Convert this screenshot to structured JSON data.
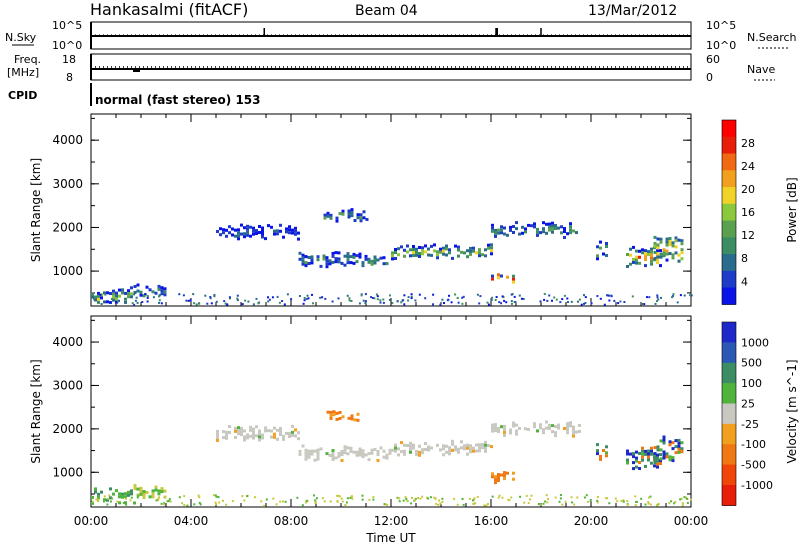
{
  "header": {
    "station": "Hankasalmi (fitACF)",
    "beam": "Beam 04",
    "date": "13/Mar/2012"
  },
  "panels": {
    "nsky": {
      "label": "N.Sky",
      "tick_top": "10^5",
      "tick_bottom": "10^0",
      "right_label": "N.Search",
      "right_tick_top": "10^5",
      "right_tick_bottom": "10^0",
      "spikes_hours": [
        6.93,
        16.2,
        16.25,
        18.0
      ]
    },
    "freq": {
      "label_line1": "Freq.",
      "label_line2": "[MHz]",
      "tick_top": "18",
      "tick_bottom": "8",
      "right_label": "Nave",
      "right_tick_top": "60",
      "right_tick_bottom": "0"
    },
    "cpid": {
      "label": "CPID",
      "value": "normal (fast stereo) 153"
    }
  },
  "chart_data": [
    {
      "type": "heatmap",
      "name": "power",
      "xlabel": "",
      "ylabel": "Slant Range [km]",
      "xlim": [
        0,
        24
      ],
      "ylim": [
        200,
        4600
      ],
      "yticks": [
        "1000",
        "2000",
        "3000",
        "4000"
      ],
      "colorbar": {
        "label": "Power [dB]",
        "ticks": [
          "4",
          "8",
          "12",
          "16",
          "20",
          "24",
          "28"
        ],
        "colors": [
          "#0a14e6",
          "#1e3cc8",
          "#2a6c8c",
          "#3c8c64",
          "#5aa050",
          "#8cc83c",
          "#f0d228",
          "#f0a01e",
          "#f06a14",
          "#e61e0a",
          "#ff0000"
        ]
      },
      "echo_regions": [
        {
          "t0": 0.0,
          "t1": 1.7,
          "r_center": 480,
          "r_width": 220,
          "level": 0.55
        },
        {
          "t0": 1.7,
          "t1": 3.0,
          "r_center": 560,
          "r_width": 200,
          "level": 0.3
        },
        {
          "t0": 5.0,
          "t1": 8.3,
          "r_center": 1900,
          "r_width": 250,
          "level": 0.1
        },
        {
          "t0": 8.3,
          "t1": 12.0,
          "r_center": 1280,
          "r_width": 220,
          "level": 0.32
        },
        {
          "t0": 12.0,
          "t1": 16.0,
          "r_center": 1450,
          "r_width": 240,
          "level": 0.5
        },
        {
          "t0": 16.0,
          "t1": 19.5,
          "r_center": 1950,
          "r_width": 260,
          "level": 0.35
        },
        {
          "t0": 9.3,
          "t1": 11.0,
          "r_center": 2300,
          "r_width": 150,
          "level": 0.3
        },
        {
          "t0": 16.0,
          "t1": 16.9,
          "r_center": 880,
          "r_width": 180,
          "level": 0.95
        },
        {
          "t0": 20.2,
          "t1": 20.6,
          "r_center": 1500,
          "r_width": 280,
          "level": 0.45
        },
        {
          "t0": 21.4,
          "t1": 22.8,
          "r_center": 1350,
          "r_width": 350,
          "level": 0.85
        },
        {
          "t0": 22.5,
          "t1": 23.7,
          "r_center": 1550,
          "r_width": 500,
          "level": 0.7
        }
      ]
    },
    {
      "type": "heatmap",
      "name": "velocity",
      "xlabel": "Time UT",
      "ylabel": "Slant Range [km]",
      "xlim": [
        0,
        24
      ],
      "ylim": [
        200,
        4600
      ],
      "xticks": [
        "00:00",
        "04:00",
        "08:00",
        "12:00",
        "16:00",
        "20:00",
        "00:00"
      ],
      "yticks": [
        "1000",
        "2000",
        "3000",
        "4000"
      ],
      "colorbar": {
        "label": "Velocity [m s^-1]",
        "ticks": [
          "1000",
          "500",
          "100",
          "25",
          "-25",
          "-100",
          "-500",
          "-1000"
        ],
        "colors": [
          "#1e28c8",
          "#2a58b4",
          "#3c8c64",
          "#50b43c",
          "#c8c8c0",
          "#f0a01e",
          "#f07814",
          "#f0460a",
          "#e61e0a"
        ]
      },
      "echo_regions": [
        {
          "t0": 0.0,
          "t1": 1.7,
          "r_center": 480,
          "r_width": 220,
          "kind": "green"
        },
        {
          "t0": 1.7,
          "t1": 3.0,
          "r_center": 560,
          "r_width": 200,
          "kind": "yellow"
        },
        {
          "t0": 5.0,
          "t1": 8.3,
          "r_center": 1900,
          "r_width": 250,
          "kind": "gray"
        },
        {
          "t0": 8.3,
          "t1": 12.0,
          "r_center": 1450,
          "r_width": 260,
          "kind": "gray"
        },
        {
          "t0": 12.0,
          "t1": 16.0,
          "r_center": 1550,
          "r_width": 260,
          "kind": "gray"
        },
        {
          "t0": 16.0,
          "t1": 19.5,
          "r_center": 2000,
          "r_width": 260,
          "kind": "gray"
        },
        {
          "t0": 9.3,
          "t1": 11.0,
          "r_center": 2300,
          "r_width": 160,
          "kind": "orange"
        },
        {
          "t0": 16.0,
          "t1": 16.9,
          "r_center": 880,
          "r_width": 180,
          "kind": "orange"
        },
        {
          "t0": 20.2,
          "t1": 20.6,
          "r_center": 1500,
          "r_width": 280,
          "kind": "greenblue"
        },
        {
          "t0": 21.4,
          "t1": 22.8,
          "r_center": 1350,
          "r_width": 350,
          "kind": "greenblue"
        },
        {
          "t0": 22.5,
          "t1": 23.7,
          "r_center": 1550,
          "r_width": 500,
          "kind": "greenblue"
        }
      ]
    }
  ]
}
